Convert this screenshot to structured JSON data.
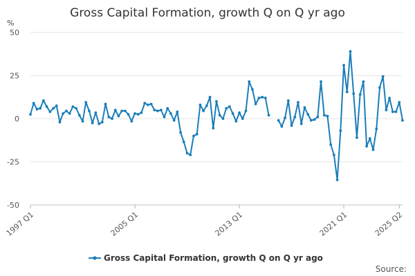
{
  "chart_data": {
    "type": "line",
    "title": "Gross Capital Formation, growth Q on Q yr ago",
    "unit": "%",
    "xlabel": "",
    "ylabel": "%",
    "ylim": [
      -50,
      50
    ],
    "yticks": [
      -50,
      -25,
      0,
      25,
      50
    ],
    "x_start": "1997 Q1",
    "x_end": "2025 Q2",
    "xticks": [
      {
        "label": "1997 Q1",
        "index": 0
      },
      {
        "label": "2005 Q1",
        "index": 32
      },
      {
        "label": "2013 Q1",
        "index": 64
      },
      {
        "label": "2021 Q1",
        "index": 96
      },
      {
        "label": "2025 Q2",
        "index": 113
      }
    ],
    "series": [
      {
        "name": "Gross Capital Formation, growth Q on Q yr ago",
        "color": "#1a7db8",
        "values": [
          2.5,
          9,
          5.5,
          6,
          10.5,
          7,
          4,
          6,
          7.5,
          -2,
          3,
          4.5,
          3,
          7,
          6,
          2,
          -1.5,
          9.5,
          4.5,
          -2.5,
          3.5,
          -3,
          -2,
          8.5,
          1,
          0,
          5,
          1.5,
          4.5,
          4.5,
          2.5,
          -1.5,
          3,
          2.5,
          3.5,
          9,
          8,
          8.5,
          5,
          4.5,
          5,
          1,
          6,
          3,
          -1,
          4,
          -8,
          -13.5,
          -20,
          -21,
          -10,
          -9,
          8,
          4.5,
          7.5,
          12.5,
          -5.5,
          10,
          2,
          0,
          6,
          7,
          3,
          -1.5,
          3.5,
          0,
          4.5,
          21.5,
          17,
          8.5,
          12,
          12.5,
          12,
          2,
          null,
          null,
          -1,
          -4.5,
          0.5,
          10.5,
          -4,
          1,
          9.5,
          -3,
          6.5,
          2.5,
          -1,
          -0.5,
          1,
          21.5,
          2,
          1.5,
          -15,
          -21,
          -35.5,
          -7,
          31,
          15.5,
          39,
          14.5,
          -11,
          14,
          21.5,
          -16,
          -11.5,
          -18,
          -6,
          18,
          24.5,
          5,
          12,
          4,
          4,
          9.5,
          -1
        ]
      }
    ],
    "legend": {
      "position": "bottom",
      "entries": [
        "Gross Capital Formation, growth Q on Q yr ago"
      ]
    },
    "grid": true,
    "source_label": "Source:"
  }
}
